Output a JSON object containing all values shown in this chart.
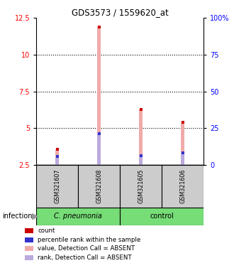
{
  "title": "GDS3573 / 1559620_at",
  "samples": [
    "GSM321607",
    "GSM321608",
    "GSM321605",
    "GSM321606"
  ],
  "groups": [
    "C. pneumonia",
    "C. pneumonia",
    "control",
    "control"
  ],
  "ylim_left": [
    2.5,
    12.5
  ],
  "ylim_right": [
    0,
    100
  ],
  "yticks_left": [
    2.5,
    5.0,
    7.5,
    10.0,
    12.5
  ],
  "ytick_labels_left": [
    "2.5",
    "5",
    "7.5",
    "10",
    "12.5"
  ],
  "yticks_right": [
    0,
    25,
    50,
    75,
    100
  ],
  "ytick_labels_right": [
    "0",
    "25",
    "50",
    "75",
    "100%"
  ],
  "bar_bottom": 2.5,
  "value_bars": [
    3.6,
    11.85,
    6.3,
    5.4
  ],
  "rank_bars": [
    3.1,
    4.65,
    3.15,
    3.35
  ],
  "count_color": "#cc0000",
  "percentile_color": "#3333cc",
  "value_absent_color": "#f0aaaa",
  "rank_absent_color": "#bbaadd",
  "bar_width": 0.08,
  "grid_dotted_at": [
    5.0,
    7.5,
    10.0
  ],
  "sample_box_color": "#cccccc",
  "cpneumonia_color": "#77dd77",
  "control_color": "#77dd77",
  "cpneumonia_label": "C. pneumonia",
  "control_label": "control",
  "infection_label": "infection",
  "legend_items": [
    [
      "#cc0000",
      "count"
    ],
    [
      "#3333cc",
      "percentile rank within the sample"
    ],
    [
      "#f0aaaa",
      "value, Detection Call = ABSENT"
    ],
    [
      "#bbaadd",
      "rank, Detection Call = ABSENT"
    ]
  ]
}
